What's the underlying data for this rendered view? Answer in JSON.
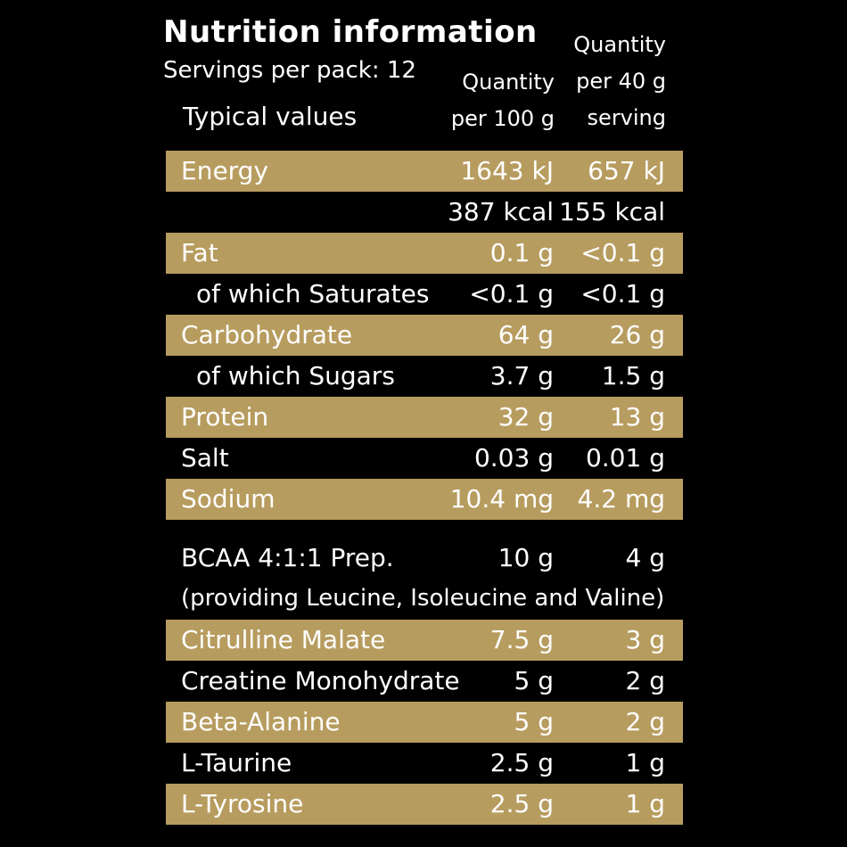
{
  "title": "Nutrition information",
  "servings": "Servings per pack: 12",
  "typical_label": "Typical values",
  "col_per100": [
    "Quantity",
    "per 100 g"
  ],
  "col_per40": [
    "Quantity",
    "per 40 g",
    "serving"
  ],
  "rows": [
    {
      "label": "Energy",
      "v100": "1643 kJ",
      "v40": "657 kJ"
    },
    {
      "label": "",
      "v100": "387 kcal",
      "v40": "155 kcal"
    },
    {
      "label": "Fat",
      "v100": "0.1 g",
      "v40": "<0.1 g"
    },
    {
      "label": "of which Saturates",
      "v100": "<0.1 g",
      "v40": "<0.1 g"
    },
    {
      "label": "Carbohydrate",
      "v100": "64 g",
      "v40": "26 g"
    },
    {
      "label": "of which Sugars",
      "v100": "3.7 g",
      "v40": "1.5 g"
    },
    {
      "label": "Protein",
      "v100": "32 g",
      "v40": "13 g"
    },
    {
      "label": "Salt",
      "v100": "0.03 g",
      "v40": "0.01 g"
    },
    {
      "label": "Sodium",
      "v100": "10.4 mg",
      "v40": "4.2 mg"
    },
    {
      "label": "BCAA 4:1:1 Prep.",
      "v100": "10 g",
      "v40": "4 g"
    },
    {
      "label": "Citrulline Malate",
      "v100": "7.5 g",
      "v40": "3 g"
    },
    {
      "label": "Creatine Monohydrate",
      "v100": "5 g",
      "v40": "2 g"
    },
    {
      "label": "Beta-Alanine",
      "v100": "5 g",
      "v40": "2 g"
    },
    {
      "label": "L-Taurine",
      "v100": "2.5 g",
      "v40": "1 g"
    },
    {
      "label": "L-Tyrosine",
      "v100": "2.5 g",
      "v40": "1 g"
    }
  ],
  "bcaa_note": "(providing Leucine, Isoleucine and Valine)",
  "colors": {
    "band": "#b79c5f",
    "background": "#000000",
    "text": "#ffffff"
  }
}
